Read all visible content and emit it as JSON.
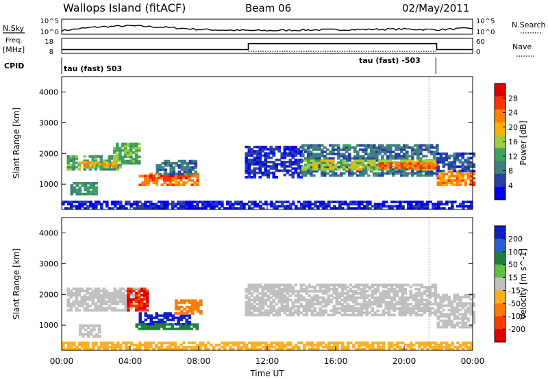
{
  "header": {
    "station": "Wallops Island (fitACF)",
    "beam": "Beam 06",
    "date": "02/May/2011"
  },
  "left_labels": {
    "nsky": "N.Sky",
    "freq": "Freq.",
    "freq_unit": "[MHz]",
    "cpid": "CPID"
  },
  "right_labels": {
    "nsearch": "N.Search",
    "nave": "Nave"
  },
  "cpid_labels": {
    "first": "tau (fast) 503",
    "second": "tau (fast) -503"
  },
  "noise_ticks_left": [
    "10^5",
    "10^0"
  ],
  "noise_ticks_right": [
    "10^5",
    "10^0"
  ],
  "freq_ticks": [
    "18",
    "8"
  ],
  "nave_ticks": [
    "60",
    "0"
  ],
  "colors": {
    "power": [
      "#0000ff",
      "#2a3fa6",
      "#3f7f7f",
      "#3fa35f",
      "#9fcf3f",
      "#ffb000",
      "#ff7f00",
      "#ff3000",
      "#e00000"
    ],
    "velocity": [
      "#1020c0",
      "#2a5fd0",
      "#1f7f3f",
      "#5fbf3f",
      "#c0c0c0",
      "#ffb020",
      "#ff7a00",
      "#ff3a00",
      "#e00000"
    ]
  },
  "chart_data": [
    {
      "type": "line",
      "panel": "noise",
      "x": [
        0,
        2,
        4,
        6,
        8,
        10,
        12,
        14,
        16,
        18,
        20,
        22,
        24
      ],
      "series": [
        {
          "values": [
            1.2,
            2.4,
            2.8,
            2.3,
            1.6,
            1.3,
            1.2,
            1.4,
            1.5,
            1.6,
            1.7,
            1.5,
            2.0
          ]
        }
      ]
    },
    {
      "type": "line",
      "panel": "frequency-nave",
      "x": [
        0,
        10.9,
        10.9,
        21.9,
        21.9,
        24
      ],
      "series": [
        {
          "values": [
            10.5,
            10.5,
            14.5,
            14.5,
            10.5,
            10.5
          ]
        }
      ],
      "frequency_ticks_mhz": [
        8,
        18
      ],
      "nave_ticks": [
        0,
        60
      ]
    },
    {
      "type": "heatmap",
      "panel": "power",
      "ylabel": "Slant Range [km]",
      "xlim": [
        0,
        24
      ],
      "ylim": [
        180,
        4500
      ],
      "yticks": [
        "1000",
        "2000",
        "3000",
        "4000"
      ],
      "colorbar_label": "Power [dB]",
      "colorbar_ticks": [
        "4",
        "8",
        "12",
        "16",
        "20",
        "24",
        "28"
      ],
      "regions": [
        {
          "x": [
            0.3,
            3.5
          ],
          "y": [
            1450,
            1900
          ],
          "value": 14
        },
        {
          "x": [
            1.0,
            3.2
          ],
          "y": [
            1550,
            1700
          ],
          "value": 22
        },
        {
          "x": [
            3.0,
            4.6
          ],
          "y": [
            1650,
            2300
          ],
          "value": 15
        },
        {
          "x": [
            4.5,
            7.9
          ],
          "y": [
            950,
            1350
          ],
          "value": 24
        },
        {
          "x": [
            4.8,
            7.5
          ],
          "y": [
            1100,
            1300
          ],
          "value": 28
        },
        {
          "x": [
            5.5,
            7.8
          ],
          "y": [
            1300,
            1750
          ],
          "value": 10
        },
        {
          "x": [
            10.7,
            14.0
          ],
          "y": [
            1200,
            2200
          ],
          "value": 6
        },
        {
          "x": [
            14.0,
            21.9
          ],
          "y": [
            1250,
            2300
          ],
          "value": 10
        },
        {
          "x": [
            14.0,
            21.9
          ],
          "y": [
            1450,
            1800
          ],
          "value": 18
        },
        {
          "x": [
            18.5,
            21.9
          ],
          "y": [
            1500,
            1700
          ],
          "value": 26
        },
        {
          "x": [
            21.9,
            24.0
          ],
          "y": [
            950,
            1400
          ],
          "value": 24
        },
        {
          "x": [
            21.9,
            24.0
          ],
          "y": [
            1400,
            2000
          ],
          "value": 8
        },
        {
          "x": [
            0.5,
            2.0
          ],
          "y": [
            650,
            1050
          ],
          "value": 12
        },
        {
          "x": [
            0.0,
            24.0
          ],
          "y": [
            180,
            450
          ],
          "value": 5
        }
      ]
    },
    {
      "type": "heatmap",
      "panel": "velocity",
      "xlabel": "Time UT",
      "ylabel": "Slant Range [km]",
      "xlim": [
        0,
        24
      ],
      "ylim": [
        180,
        4500
      ],
      "xticks": [
        "00:00",
        "04:00",
        "08:00",
        "12:00",
        "16:00",
        "20:00",
        "00:00"
      ],
      "yticks": [
        "1000",
        "2000",
        "3000",
        "4000"
      ],
      "colorbar_label": "Velocity [m s^-1]",
      "colorbar_ticks": [
        "200",
        "100",
        "50",
        "15",
        "-15",
        "-50",
        "-100",
        "-200"
      ],
      "regions": [
        {
          "x": [
            0.3,
            4.6
          ],
          "y": [
            1450,
            2200
          ],
          "value": 0
        },
        {
          "x": [
            4.5,
            7.5
          ],
          "y": [
            1000,
            1400
          ],
          "value": 200
        },
        {
          "x": [
            4.3,
            7.9
          ],
          "y": [
            850,
            1000
          ],
          "value": 40
        },
        {
          "x": [
            3.8,
            5.0
          ],
          "y": [
            1450,
            2200
          ],
          "value": -150
        },
        {
          "x": [
            6.6,
            8.1
          ],
          "y": [
            1350,
            1800
          ],
          "value": -80
        },
        {
          "x": [
            10.7,
            21.9
          ],
          "y": [
            1300,
            2300
          ],
          "value": 0
        },
        {
          "x": [
            21.9,
            24.0
          ],
          "y": [
            900,
            2000
          ],
          "value": 0
        },
        {
          "x": [
            1.0,
            2.2
          ],
          "y": [
            600,
            1000
          ],
          "value": 0
        },
        {
          "x": [
            0.0,
            24.0
          ],
          "y": [
            180,
            450
          ],
          "value": -30
        }
      ]
    }
  ]
}
